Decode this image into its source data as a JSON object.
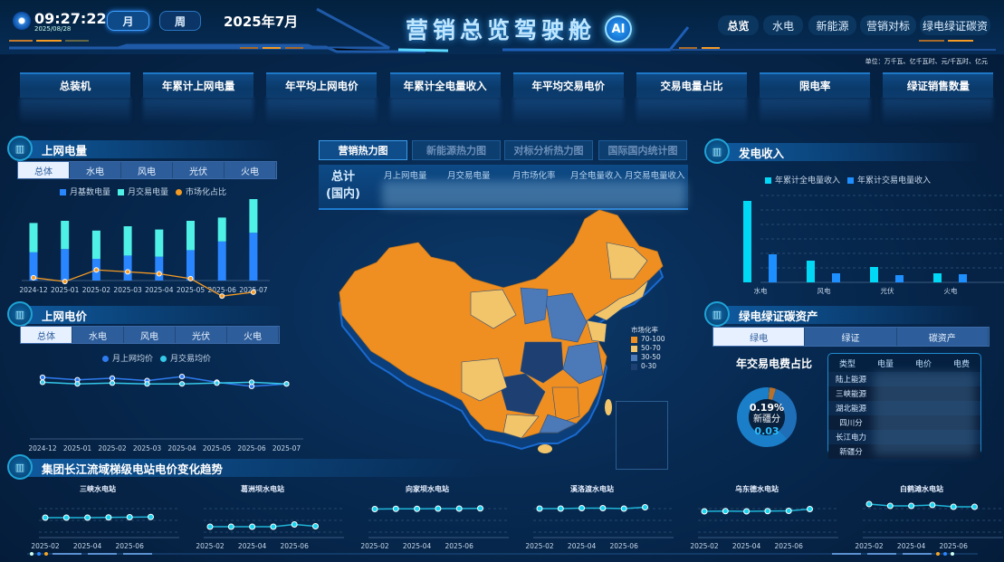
{
  "header": {
    "time": "09:27:22",
    "date": "2025/08/28",
    "period_buttons": [
      {
        "label": "月",
        "active": true
      },
      {
        "label": "周",
        "active": false
      }
    ],
    "current_period": "2025年7月",
    "title": "营销总览驾驶舱",
    "ai_label": "AI",
    "nav_tabs": [
      {
        "label": "总览",
        "active": true
      },
      {
        "label": "水电"
      },
      {
        "label": "新能源"
      },
      {
        "label": "营销对标"
      },
      {
        "label": "绿电绿证碳资"
      }
    ]
  },
  "unit_note": "单位：万千瓦、亿千瓦时、元/千瓦时、亿元",
  "kpis": [
    "总装机",
    "年累计上网电量",
    "年平均上网电价",
    "年累计全电量收入",
    "年平均交易电价",
    "交易电量占比",
    "限电率",
    "绿证销售数量"
  ],
  "colors": {
    "base": "#2a86ff",
    "trade": "#4ff0e6",
    "ratio": "#f59a23",
    "price_grid": "#2f7cf0",
    "price_trade": "#35c8e8",
    "rev_total": "#00d8f5",
    "rev_trade": "#1e8fff",
    "map_high": "#ef8f22",
    "map_mid": "#f3c56a",
    "map_low": "#4c79b8",
    "map_lowest": "#1d3f72"
  },
  "left": {
    "grid_power": {
      "title": "上网电量",
      "tabs": [
        "总体",
        "水电",
        "风电",
        "光伏",
        "火电"
      ],
      "legend": [
        "月基数电量",
        "月交易电量",
        "市场化占比"
      ],
      "chart_data": {
        "type": "bar",
        "stacked": true,
        "categories": [
          "2024-12",
          "2025-01",
          "2025-02",
          "2025-03",
          "2025-04",
          "2025-05",
          "2025-06",
          "2025-07"
        ],
        "series": [
          {
            "name": "月基数电量",
            "values": [
              26,
              29,
              20,
              23,
              22,
              28,
              36,
              44
            ]
          },
          {
            "name": "月交易电量",
            "values": [
              27,
              26,
              26,
              27,
              25,
              27,
              22,
              31
            ]
          },
          {
            "name": "市场化占比",
            "type": "line",
            "values": [
              74,
              70,
              82,
              80,
              78,
              73,
              55,
              59
            ]
          }
        ]
      }
    },
    "grid_price": {
      "title": "上网电价",
      "tabs": [
        "总体",
        "水电",
        "风电",
        "光伏",
        "火电"
      ],
      "legend": [
        "月上网均价",
        "月交易均价"
      ],
      "chart_data": {
        "type": "line",
        "categories": [
          "2024-12",
          "2025-01",
          "2025-02",
          "2025-03",
          "2025-04",
          "2025-05",
          "2025-06",
          "2025-07"
        ],
        "series": [
          {
            "name": "月上网均价",
            "values": [
              70,
              67,
              69,
              66,
              71,
              64,
              59,
              62
            ]
          },
          {
            "name": "月交易均价",
            "values": [
              64,
              62,
              63,
              62,
              62,
              63,
              64,
              62
            ]
          }
        ]
      }
    }
  },
  "stations": {
    "title": "集团长江流域梯级电站电价变化趋势",
    "chart_data": [
      {
        "type": "line",
        "title": "三峡水电站",
        "x": [
          "2025-02",
          "2025-03",
          "2025-04",
          "2025-05",
          "2025-06",
          "2025-07"
        ],
        "ticks": [
          "2025-02",
          "2025-04",
          "2025-06"
        ],
        "values": [
          60,
          60,
          60,
          60.5,
          61,
          61.5
        ]
      },
      {
        "type": "line",
        "title": "葛洲坝水电站",
        "x": [
          "2025-02",
          "2025-03",
          "2025-04",
          "2025-05",
          "2025-06",
          "2025-07"
        ],
        "ticks": [
          "2025-02",
          "2025-04",
          "2025-06"
        ],
        "values": [
          40,
          40,
          40,
          40,
          45,
          41
        ]
      },
      {
        "type": "line",
        "title": "向家坝水电站",
        "x": [
          "2025-02",
          "2025-03",
          "2025-04",
          "2025-05",
          "2025-06",
          "2025-07"
        ],
        "ticks": [
          "2025-02",
          "2025-04",
          "2025-06"
        ],
        "values": [
          79,
          79.5,
          79.5,
          80,
          80,
          80.5
        ]
      },
      {
        "type": "line",
        "title": "溪洛渡水电站",
        "x": [
          "2025-02",
          "2025-03",
          "2025-04",
          "2025-05",
          "2025-06",
          "2025-07"
        ],
        "ticks": [
          "2025-02",
          "2025-04",
          "2025-06"
        ],
        "values": [
          80,
          80,
          81,
          81,
          80,
          83
        ]
      },
      {
        "type": "line",
        "title": "乌东德水电站",
        "x": [
          "2025-02",
          "2025-03",
          "2025-04",
          "2025-05",
          "2025-06",
          "2025-07"
        ],
        "ticks": [
          "2025-02",
          "2025-04",
          "2025-06"
        ],
        "values": [
          74,
          74.5,
          74,
          74.5,
          75,
          79
        ]
      },
      {
        "type": "line",
        "title": "白鹤滩水电站",
        "x": [
          "2025-02",
          "2025-03",
          "2025-04",
          "2025-05",
          "2025-06",
          "2025-07"
        ],
        "ticks": [
          "2025-02",
          "2025-04",
          "2025-06"
        ],
        "values": [
          90,
          86,
          86,
          88,
          84,
          84
        ]
      }
    ]
  },
  "center": {
    "tabs": [
      {
        "label": "营销热力图",
        "active": true
      },
      {
        "label": "新能源热力图"
      },
      {
        "label": "对标分析热力图"
      },
      {
        "label": "国际国内统计图"
      }
    ],
    "summary_label": [
      "总计",
      "(国内)"
    ],
    "columns": [
      "月上网电量",
      "月交易电量",
      "月市场化率",
      "月全电量收入",
      "月交易电量收入"
    ],
    "map_legend": {
      "title": "市场化率",
      "items": [
        "70-100",
        "50-70",
        "30-50",
        "0-30"
      ]
    }
  },
  "right": {
    "revenue": {
      "title": "发电收入",
      "legend": [
        "年累计全电量收入",
        "年累计交易电量收入"
      ],
      "chart_data": {
        "type": "bar",
        "categories": [
          "水电",
          "风电",
          "光伏",
          "火电"
        ],
        "series": [
          {
            "name": "年累计全电量收入",
            "values": [
              90,
              24,
              17,
              10
            ]
          },
          {
            "name": "年累计交易电量收入",
            "values": [
              31,
              10,
              8,
              9
            ]
          }
        ]
      }
    },
    "green": {
      "title": "绿电绿证碳资产",
      "tabs": [
        {
          "label": "绿电",
          "active": true
        },
        {
          "label": "绿证"
        },
        {
          "label": "碳资产"
        }
      ],
      "donut_title": "年交易电费占比",
      "donut_center": {
        "percent": "0.19%",
        "name": "新疆分",
        "value": "0.03"
      },
      "donut_data": {
        "type": "pie",
        "values": [
          0.19,
          3.5,
          33,
          63.31
        ]
      },
      "table": {
        "columns": [
          "类型",
          "电量",
          "电价",
          "电费"
        ],
        "rows": [
          "陆上能源",
          "三峡能源",
          "湖北能源",
          "四川分",
          "长江电力",
          "新疆分"
        ]
      }
    }
  }
}
